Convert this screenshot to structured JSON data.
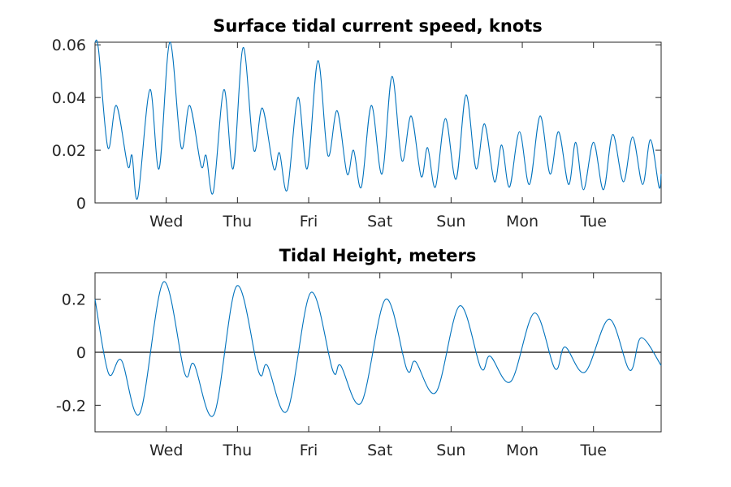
{
  "colors": {
    "series": "#0072bd",
    "axis": "#262626",
    "zero_line": "#000000"
  },
  "chart_data": [
    {
      "type": "line",
      "title": "Surface tidal current speed, knots",
      "xlabel": "",
      "ylabel": "",
      "xlim": [
        0,
        7.95
      ],
      "ylim": [
        0,
        0.061
      ],
      "grid": false,
      "x_ticks": [
        {
          "x": 1.0,
          "label": "Wed"
        },
        {
          "x": 2.0,
          "label": "Thu"
        },
        {
          "x": 3.0,
          "label": "Fri"
        },
        {
          "x": 4.0,
          "label": "Sat"
        },
        {
          "x": 5.0,
          "label": "Sun"
        },
        {
          "x": 6.0,
          "label": "Mon"
        },
        {
          "x": 7.0,
          "label": "Tue"
        }
      ],
      "y_ticks": [
        {
          "y": 0,
          "label": "0"
        },
        {
          "y": 0.02,
          "label": "0.02"
        },
        {
          "y": 0.04,
          "label": "0.04"
        },
        {
          "y": 0.06,
          "label": "0.06"
        }
      ],
      "series": [
        {
          "points": [
            [
              0.0,
              0.061
            ],
            [
              0.05,
              0.058
            ],
            [
              0.18,
              0.021
            ],
            [
              0.3,
              0.037
            ],
            [
              0.46,
              0.014
            ],
            [
              0.52,
              0.018
            ],
            [
              0.6,
              0.002
            ],
            [
              0.77,
              0.043
            ],
            [
              0.9,
              0.013
            ],
            [
              1.05,
              0.061
            ],
            [
              1.21,
              0.021
            ],
            [
              1.33,
              0.037
            ],
            [
              1.49,
              0.014
            ],
            [
              1.56,
              0.018
            ],
            [
              1.66,
              0.004
            ],
            [
              1.81,
              0.043
            ],
            [
              1.94,
              0.013
            ],
            [
              2.08,
              0.059
            ],
            [
              2.23,
              0.02
            ],
            [
              2.35,
              0.036
            ],
            [
              2.51,
              0.013
            ],
            [
              2.59,
              0.019
            ],
            [
              2.7,
              0.005
            ],
            [
              2.85,
              0.04
            ],
            [
              2.98,
              0.013
            ],
            [
              3.13,
              0.054
            ],
            [
              3.27,
              0.018
            ],
            [
              3.4,
              0.035
            ],
            [
              3.54,
              0.011
            ],
            [
              3.63,
              0.02
            ],
            [
              3.74,
              0.006
            ],
            [
              3.88,
              0.037
            ],
            [
              4.03,
              0.011
            ],
            [
              4.17,
              0.048
            ],
            [
              4.31,
              0.016
            ],
            [
              4.44,
              0.033
            ],
            [
              4.58,
              0.01
            ],
            [
              4.67,
              0.021
            ],
            [
              4.78,
              0.006
            ],
            [
              4.92,
              0.032
            ],
            [
              5.07,
              0.009
            ],
            [
              5.21,
              0.041
            ],
            [
              5.35,
              0.013
            ],
            [
              5.47,
              0.03
            ],
            [
              5.61,
              0.008
            ],
            [
              5.71,
              0.022
            ],
            [
              5.82,
              0.006
            ],
            [
              5.96,
              0.027
            ],
            [
              6.1,
              0.007
            ],
            [
              6.25,
              0.033
            ],
            [
              6.39,
              0.011
            ],
            [
              6.51,
              0.027
            ],
            [
              6.65,
              0.007
            ],
            [
              6.75,
              0.023
            ],
            [
              6.86,
              0.005
            ],
            [
              7.0,
              0.023
            ],
            [
              7.14,
              0.005
            ],
            [
              7.27,
              0.026
            ],
            [
              7.42,
              0.008
            ],
            [
              7.55,
              0.025
            ],
            [
              7.69,
              0.007
            ],
            [
              7.8,
              0.024
            ],
            [
              7.92,
              0.006
            ],
            [
              7.95,
              0.011
            ]
          ]
        }
      ]
    },
    {
      "type": "line",
      "title": "Tidal Height, meters",
      "xlabel": "",
      "ylabel": "",
      "xlim": [
        0,
        7.95
      ],
      "ylim": [
        -0.3,
        0.3
      ],
      "grid": false,
      "reference_line_y": 0,
      "x_ticks": [
        {
          "x": 1.0,
          "label": "Wed"
        },
        {
          "x": 2.0,
          "label": "Thu"
        },
        {
          "x": 3.0,
          "label": "Fri"
        },
        {
          "x": 4.0,
          "label": "Sat"
        },
        {
          "x": 5.0,
          "label": "Sun"
        },
        {
          "x": 6.0,
          "label": "Mon"
        },
        {
          "x": 7.0,
          "label": "Tue"
        }
      ],
      "y_ticks": [
        {
          "y": -0.2,
          "label": "-0.2"
        },
        {
          "y": 0,
          "label": "0"
        },
        {
          "y": 0.2,
          "label": "0.2"
        }
      ],
      "series": [
        {
          "points": [
            [
              0.0,
              0.2
            ],
            [
              0.19,
              -0.08
            ],
            [
              0.37,
              -0.03
            ],
            [
              0.63,
              -0.23
            ],
            [
              0.96,
              0.265
            ],
            [
              1.26,
              -0.08
            ],
            [
              1.39,
              -0.045
            ],
            [
              1.67,
              -0.235
            ],
            [
              1.99,
              0.25
            ],
            [
              2.3,
              -0.075
            ],
            [
              2.42,
              -0.05
            ],
            [
              2.7,
              -0.22
            ],
            [
              3.03,
              0.225
            ],
            [
              3.34,
              -0.07
            ],
            [
              3.45,
              -0.05
            ],
            [
              3.74,
              -0.19
            ],
            [
              4.08,
              0.2
            ],
            [
              4.38,
              -0.065
            ],
            [
              4.5,
              -0.035
            ],
            [
              4.79,
              -0.15
            ],
            [
              5.12,
              0.175
            ],
            [
              5.42,
              -0.06
            ],
            [
              5.55,
              -0.015
            ],
            [
              5.84,
              -0.11
            ],
            [
              6.17,
              0.148
            ],
            [
              6.46,
              -0.062
            ],
            [
              6.6,
              0.02
            ],
            [
              6.88,
              -0.075
            ],
            [
              7.22,
              0.125
            ],
            [
              7.51,
              -0.068
            ],
            [
              7.67,
              0.055
            ],
            [
              7.95,
              -0.05
            ]
          ]
        }
      ]
    }
  ]
}
